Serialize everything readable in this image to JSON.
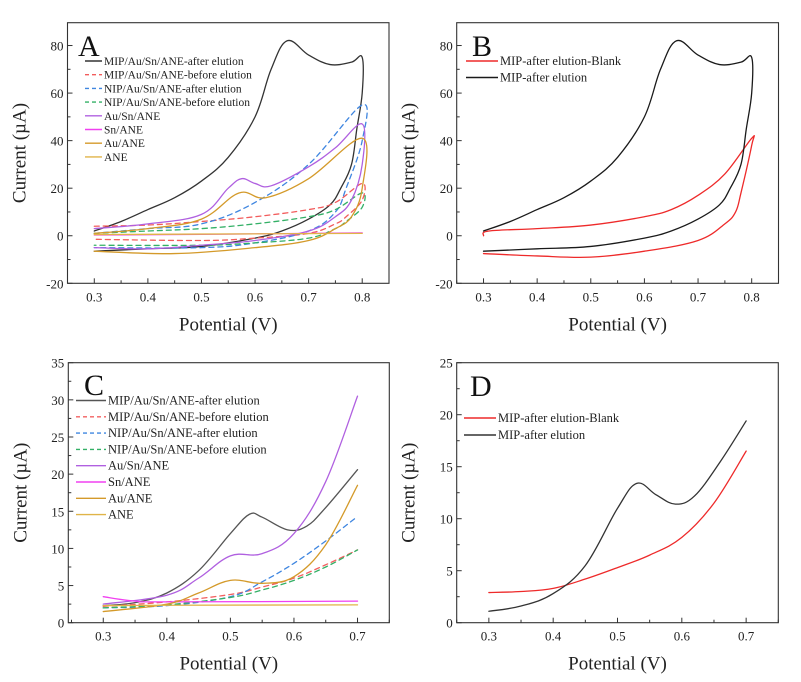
{
  "figure": {
    "panels": [
      "A",
      "B",
      "C",
      "D"
    ]
  },
  "chart_data": [
    {
      "id": "A",
      "type": "line",
      "panel_label": "A",
      "title": "",
      "xlabel": "Potential (V)",
      "ylabel": "Current (µA)",
      "xlim": [
        0.25,
        0.85
      ],
      "ylim": [
        -20,
        89.6
      ],
      "xticks": [
        0.3,
        0.4,
        0.5,
        0.6,
        0.7,
        0.8
      ],
      "xtick_labels": [
        "0.3",
        "0.4",
        "0.5",
        "0.6",
        "0.7",
        "0.8"
      ],
      "yticks": [
        -20,
        0,
        20,
        40,
        60,
        80
      ],
      "ytick_labels": [
        "-20",
        "0",
        "20",
        "40",
        "60",
        "80"
      ],
      "grid": false,
      "legend_position": "top-left",
      "series": [
        {
          "name": "MIP/Au/Sn/ANE-after elution",
          "color": "#333333",
          "dash": false,
          "x": [
            0.3,
            0.35,
            0.4,
            0.45,
            0.5,
            0.55,
            0.6,
            0.63,
            0.66,
            0.7,
            0.74,
            0.78,
            0.8,
            0.8,
            0.79,
            0.78,
            0.76,
            0.74,
            0.7,
            0.65,
            0.6,
            0.5,
            0.4,
            0.3
          ],
          "y": [
            2,
            6,
            11,
            16,
            23,
            33,
            50,
            70,
            82,
            76,
            72,
            73,
            75,
            60,
            45,
            30,
            20,
            13,
            7,
            2,
            -1,
            -4.5,
            -5.5,
            -6.5
          ]
        },
        {
          "name": "MIP/Au/Sn/ANE-before elution",
          "color": "#f25c5c",
          "dash": true,
          "x": [
            0.3,
            0.4,
            0.5,
            0.6,
            0.7,
            0.75,
            0.8,
            0.8,
            0.77,
            0.75,
            0.7,
            0.6,
            0.5,
            0.3
          ],
          "y": [
            4,
            4.5,
            6,
            8,
            11,
            14,
            22,
            15,
            8,
            5,
            1,
            -1,
            -2,
            -1.5
          ]
        },
        {
          "name": "NIP/Au/Sn/ANE-after elution",
          "color": "#3f86e0",
          "dash": true,
          "x": [
            0.3,
            0.4,
            0.5,
            0.6,
            0.7,
            0.8,
            0.8,
            0.77,
            0.75,
            0.7,
            0.6,
            0.5,
            0.3
          ],
          "y": [
            1,
            3,
            5,
            14,
            30,
            55,
            40,
            20,
            10,
            2,
            -3,
            -5,
            -5
          ]
        },
        {
          "name": "NIP/Au/Sn/ANE-before elution",
          "color": "#33b066",
          "dash": true,
          "x": [
            0.3,
            0.4,
            0.5,
            0.6,
            0.7,
            0.75,
            0.8,
            0.8,
            0.77,
            0.75,
            0.7,
            0.6,
            0.5,
            0.3
          ],
          "y": [
            1,
            2,
            3,
            5,
            8,
            11,
            18,
            12,
            6,
            3,
            -1,
            -3,
            -4,
            -4
          ]
        },
        {
          "name": "Au/Sn/ANE",
          "color": "#b060e0",
          "dash": false,
          "x": [
            0.3,
            0.4,
            0.5,
            0.55,
            0.575,
            0.6,
            0.63,
            0.7,
            0.75,
            0.8,
            0.8,
            0.78,
            0.75,
            0.7,
            0.6,
            0.5,
            0.4,
            0.3
          ],
          "y": [
            3,
            5,
            9,
            20,
            24,
            22,
            21,
            29,
            37,
            47,
            30,
            15,
            8,
            2,
            -2,
            -4,
            -5.5,
            -5
          ]
        },
        {
          "name": "Sn/ANE",
          "color": "#f040f0",
          "dash": false,
          "x": [
            0.3,
            0.5,
            0.8
          ],
          "y": [
            0.3,
            0.6,
            1.2
          ]
        },
        {
          "name": "Au/ANE",
          "color": "#d49a2a",
          "dash": false,
          "x": [
            0.3,
            0.4,
            0.5,
            0.57,
            0.62,
            0.7,
            0.8,
            0.8,
            0.78,
            0.75,
            0.7,
            0.6,
            0.45,
            0.3
          ],
          "y": [
            1,
            3,
            7,
            18,
            16,
            24,
            41,
            20,
            8,
            3,
            -2,
            -5,
            -7.5,
            -6.5
          ]
        },
        {
          "name": "ANE",
          "color": "#e0b448",
          "dash": false,
          "x": [
            0.3,
            0.5,
            0.8
          ],
          "y": [
            0.5,
            0.7,
            1.0
          ]
        }
      ]
    },
    {
      "id": "B",
      "type": "line",
      "panel_label": "B",
      "title": "",
      "xlabel": "Potential (V)",
      "ylabel": "Current (µA)",
      "xlim": [
        0.25,
        0.85
      ],
      "ylim": [
        -20,
        89.6
      ],
      "xticks": [
        0.3,
        0.4,
        0.5,
        0.6,
        0.7,
        0.8
      ],
      "xtick_labels": [
        "0.3",
        "0.4",
        "0.5",
        "0.6",
        "0.7",
        "0.8"
      ],
      "yticks": [
        -20,
        0,
        20,
        40,
        60,
        80
      ],
      "ytick_labels": [
        "-20",
        "0",
        "20",
        "40",
        "60",
        "80"
      ],
      "grid": false,
      "legend_position": "top-left",
      "series": [
        {
          "name": "MIP-after elution-Blank",
          "color": "#ee2a2a",
          "dash": false,
          "x": [
            0.3,
            0.31,
            0.4,
            0.5,
            0.6,
            0.65,
            0.7,
            0.75,
            0.8,
            0.8,
            0.78,
            0.77,
            0.75,
            0.7,
            0.6,
            0.5,
            0.4,
            0.3
          ],
          "y": [
            0,
            2,
            3,
            4.5,
            8,
            11,
            17,
            26,
            41,
            38,
            18,
            10,
            5,
            -2,
            -6.5,
            -9,
            -8.5,
            -7.5
          ]
        },
        {
          "name": "MIP-after elution",
          "color": "#1a1a1a",
          "dash": false,
          "x": [
            0.3,
            0.35,
            0.4,
            0.45,
            0.5,
            0.55,
            0.6,
            0.63,
            0.66,
            0.7,
            0.74,
            0.78,
            0.8,
            0.8,
            0.79,
            0.78,
            0.76,
            0.74,
            0.7,
            0.65,
            0.6,
            0.5,
            0.4,
            0.3
          ],
          "y": [
            2,
            6,
            11,
            16,
            23,
            33,
            50,
            70,
            82,
            76,
            72,
            73,
            75,
            60,
            45,
            30,
            20,
            13,
            7,
            2,
            -1,
            -4.5,
            -5.5,
            -6.5
          ]
        }
      ]
    },
    {
      "id": "C",
      "type": "line",
      "panel_label": "C",
      "title": "",
      "xlabel": "Potential (V)",
      "ylabel": "Current (µA)",
      "xlim": [
        0.245,
        0.75
      ],
      "ylim": [
        0,
        35
      ],
      "xticks": [
        0.3,
        0.4,
        0.5,
        0.6,
        0.7
      ],
      "xtick_labels": [
        "0.3",
        "0.4",
        "0.5",
        "0.6",
        "0.7"
      ],
      "yticks": [
        0,
        5,
        10,
        15,
        20,
        25,
        30,
        35
      ],
      "ytick_labels": [
        "0",
        "5",
        "10",
        "15",
        "20",
        "25",
        "30",
        "35"
      ],
      "grid": false,
      "legend_position": "top-left",
      "series": [
        {
          "name": "MIP/Au/Sn/ANE-after elution",
          "color": "#555555",
          "dash": false,
          "x": [
            0.3,
            0.35,
            0.4,
            0.45,
            0.5,
            0.53,
            0.55,
            0.59,
            0.62,
            0.65,
            0.7
          ],
          "y": [
            2.3,
            2.7,
            4,
            7,
            12,
            14.6,
            14.2,
            12.5,
            13,
            15.5,
            20.6
          ]
        },
        {
          "name": "MIP/Au/Sn/ANE-before elution",
          "color": "#f26060",
          "dash": true,
          "x": [
            0.3,
            0.4,
            0.5,
            0.55,
            0.6,
            0.65,
            0.7
          ],
          "y": [
            2.2,
            2.8,
            3.8,
            4.8,
            6,
            7.8,
            9.8
          ]
        },
        {
          "name": "NIP/Au/Sn/ANE-after elution",
          "color": "#3f86e0",
          "dash": true,
          "x": [
            0.3,
            0.4,
            0.5,
            0.55,
            0.6,
            0.65,
            0.7
          ],
          "y": [
            2,
            2.3,
            3.5,
            5.5,
            8,
            11,
            14.3
          ]
        },
        {
          "name": "NIP/Au/Sn/ANE-before elution",
          "color": "#33b066",
          "dash": true,
          "x": [
            0.3,
            0.4,
            0.5,
            0.55,
            0.6,
            0.65,
            0.7
          ],
          "y": [
            2,
            2.4,
            3.4,
            4.4,
            5.7,
            7.5,
            9.8
          ]
        },
        {
          "name": "Au/Sn/ANE",
          "color": "#b060e0",
          "dash": false,
          "x": [
            0.3,
            0.4,
            0.45,
            0.5,
            0.55,
            0.6,
            0.65,
            0.7
          ],
          "y": [
            2.5,
            3.7,
            6,
            9,
            9.3,
            12,
            19,
            30.5
          ]
        },
        {
          "name": "Sn/ANE",
          "color": "#f040f0",
          "dash": false,
          "x": [
            0.3,
            0.35,
            0.4,
            0.7
          ],
          "y": [
            3.5,
            2.9,
            2.8,
            2.9
          ]
        },
        {
          "name": "Au/ANE",
          "color": "#d49a2a",
          "dash": false,
          "x": [
            0.3,
            0.4,
            0.45,
            0.5,
            0.55,
            0.6,
            0.65,
            0.7
          ],
          "y": [
            1.5,
            2.5,
            4,
            5.7,
            5.3,
            6.2,
            10.5,
            18.5
          ]
        },
        {
          "name": "ANE",
          "color": "#e0b448",
          "dash": false,
          "x": [
            0.3,
            0.4,
            0.7
          ],
          "y": [
            2.3,
            2.35,
            2.4
          ]
        }
      ]
    },
    {
      "id": "D",
      "type": "line",
      "panel_label": "D",
      "title": "",
      "xlabel": "Potential (V)",
      "ylabel": "Current (µA)",
      "xlim": [
        0.25,
        0.75
      ],
      "ylim": [
        0,
        25
      ],
      "xticks": [
        0.3,
        0.4,
        0.5,
        0.6,
        0.7
      ],
      "xtick_labels": [
        "0.3",
        "0.4",
        "0.5",
        "0.6",
        "0.7"
      ],
      "yticks": [
        0,
        5,
        10,
        15,
        20,
        25
      ],
      "ytick_labels": [
        "0",
        "5",
        "10",
        "15",
        "20",
        "25"
      ],
      "grid": false,
      "legend_position": "top-left",
      "series": [
        {
          "name": "MIP-after elution-Blank",
          "color": "#ee2a2a",
          "dash": false,
          "x": [
            0.3,
            0.35,
            0.4,
            0.45,
            0.5,
            0.55,
            0.6,
            0.65,
            0.7
          ],
          "y": [
            2.9,
            3,
            3.3,
            4.2,
            5.3,
            6.5,
            8.2,
            11.5,
            16.5
          ]
        },
        {
          "name": "MIP-after elution",
          "color": "#333333",
          "dash": false,
          "x": [
            0.3,
            0.35,
            0.4,
            0.45,
            0.5,
            0.53,
            0.56,
            0.59,
            0.62,
            0.66,
            0.7
          ],
          "y": [
            1.1,
            1.6,
            2.8,
            5.5,
            11,
            13.4,
            12.3,
            11.4,
            12.2,
            15.5,
            19.4
          ]
        }
      ]
    }
  ]
}
